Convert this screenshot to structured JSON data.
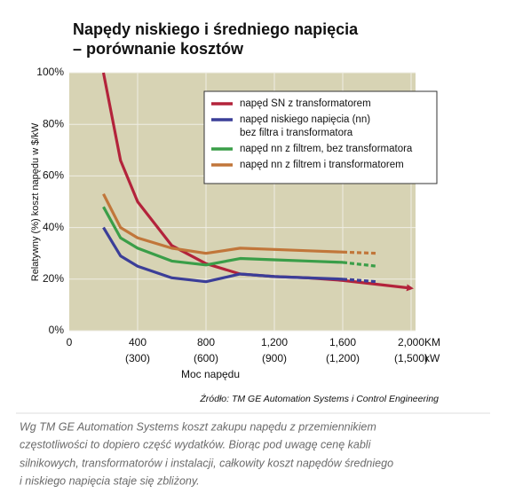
{
  "chart_data": {
    "type": "line",
    "title": [
      "Napędy niskiego i średniego napięcia",
      "– porównanie kosztów"
    ],
    "ylabel": "Relatywny (%) koszt napędu w $/kW",
    "xlabel": "Moc napędu",
    "x_unit": "KM",
    "x2_unit": "kW",
    "xlim": [
      0,
      2000
    ],
    "xticks": [
      0,
      400,
      800,
      {
        "value": 1200,
        "label": "1,200"
      },
      {
        "value": 1600,
        "label": "1,600"
      },
      {
        "value": 2000,
        "label": "2,000"
      }
    ],
    "x2tick_labels": [
      null,
      "(300)",
      "(600)",
      "(900)",
      "(1,200)",
      "(1,500)"
    ],
    "ylim": [
      0,
      100
    ],
    "yticks": [
      {
        "value": 0,
        "label": "0%"
      },
      {
        "value": 20,
        "label": "20%"
      },
      {
        "value": 40,
        "label": "40%"
      },
      {
        "value": 60,
        "label": "60%"
      },
      {
        "value": 80,
        "label": "80%"
      },
      {
        "value": 100,
        "label": "100%"
      }
    ],
    "grid": true,
    "legend": "upper right",
    "series": [
      {
        "name": [
          "napęd SN z transformatorem"
        ],
        "color": "#b3233b",
        "arrow": true,
        "x": [
          200,
          300,
          400,
          600,
          800,
          1000,
          1200,
          1400,
          1600,
          1800,
          2000
        ],
        "values": [
          100,
          66,
          50,
          33,
          26,
          22,
          21,
          20.5,
          19.5,
          18,
          16.5
        ]
      },
      {
        "name": [
          "napęd niskiego napięcia (nn)",
          "bez filtra i transformatora"
        ],
        "color": "#3b3e98",
        "dash_from_x": 1600,
        "x": [
          200,
          300,
          400,
          600,
          800,
          1000,
          1200,
          1400,
          1600,
          1800
        ],
        "values": [
          40,
          29,
          25,
          20.5,
          19,
          22,
          21,
          20.5,
          20,
          19
        ]
      },
      {
        "name": [
          "napęd nn z filtrem, bez transformatora"
        ],
        "color": "#3a9e48",
        "dash_from_x": 1600,
        "x": [
          200,
          300,
          400,
          600,
          800,
          1000,
          1200,
          1400,
          1600,
          1800
        ],
        "values": [
          48,
          36,
          32,
          27,
          25.5,
          28,
          27.5,
          27,
          26.5,
          25
        ]
      },
      {
        "name": [
          "napęd nn z filtrem i transformatorem"
        ],
        "color": "#c1763a",
        "dash_from_x": 1600,
        "x": [
          200,
          300,
          400,
          600,
          800,
          1000,
          1200,
          1400,
          1600,
          1800
        ],
        "values": [
          53,
          40,
          36,
          32,
          30,
          32,
          31.5,
          31,
          30.5,
          30
        ]
      }
    ],
    "source": "Źródło: TM GE Automation Systems i Control Engineering",
    "caption": [
      "Wg TM GE Automation Systems koszt zakupu napędu z przemiennikiem",
      "częstotliwości to dopiero część wydatków. Biorąc pod uwagę cenę kabli",
      "silnikowych, transformatorów i instalacji, całkowity koszt napędów średniego",
      "i niskiego napięcia staje się zbliżony."
    ]
  }
}
